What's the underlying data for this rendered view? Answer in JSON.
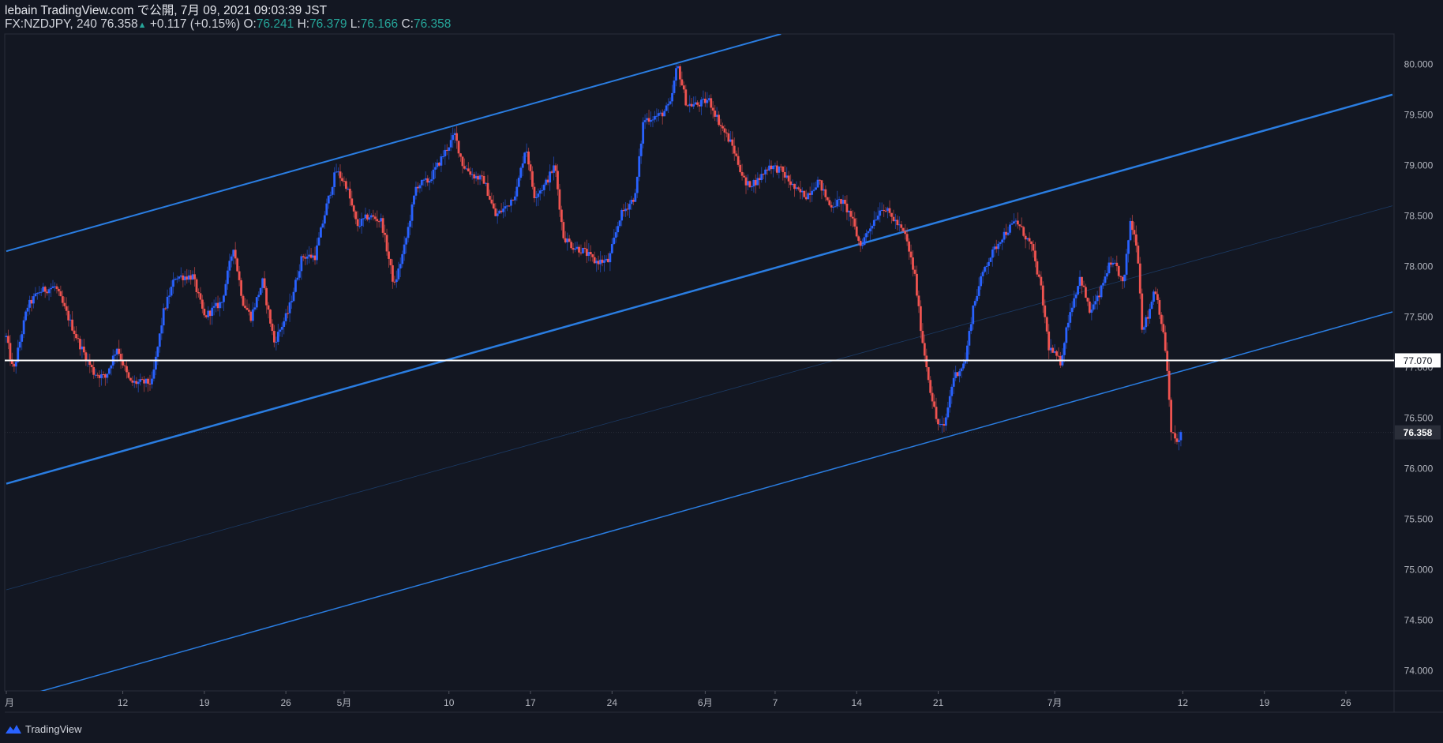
{
  "header": {
    "line1": "lebain TradingView.com で公開, 7月 09, 2021 09:03:39 JST",
    "symbol": "FX:NZDJPY, 240",
    "last": "76.358",
    "up_arrow": "▲",
    "change": "+0.117 (+0.15%)",
    "o_label": "O:",
    "o_value": "76.241",
    "h_label": "H:",
    "h_value": "76.379",
    "l_label": "L:",
    "l_value": "76.166",
    "c_label": "C:",
    "c_value": "76.358"
  },
  "footer": {
    "brand": "TradingView",
    "logo_icon": "tradingview-logo-icon"
  },
  "colors": {
    "background": "#131722",
    "up": "#2962ff",
    "down": "#ef5350",
    "channel": "#2a7de1",
    "level_line": "#ffffff",
    "axis_text": "#b2b5be"
  },
  "chart_data": {
    "type": "candlestick",
    "instrument": "FX:NZDJPY",
    "interval": "240",
    "y_ticks": [
      "80.000",
      "79.500",
      "79.000",
      "78.500",
      "78.000",
      "77.500",
      "77.000",
      "76.500",
      "76.000",
      "75.500",
      "75.000",
      "74.500",
      "74.000"
    ],
    "ylim": [
      73.8,
      80.3
    ],
    "x_ticks": [
      {
        "label": "月",
        "day": 0
      },
      {
        "label": "12",
        "day": 10
      },
      {
        "label": "19",
        "day": 17
      },
      {
        "label": "26",
        "day": 24
      },
      {
        "label": "5月",
        "day": 29
      },
      {
        "label": "10",
        "day": 38
      },
      {
        "label": "17",
        "day": 45
      },
      {
        "label": "24",
        "day": 52
      },
      {
        "label": "6月",
        "day": 60
      },
      {
        "label": "7",
        "day": 66
      },
      {
        "label": "14",
        "day": 73
      },
      {
        "label": "21",
        "day": 80
      },
      {
        "label": "7月",
        "day": 90
      },
      {
        "label": "12",
        "day": 101
      },
      {
        "label": "19",
        "day": 108
      },
      {
        "label": "26",
        "day": 115
      }
    ],
    "xlim": [
      0,
      119
    ],
    "horizontal_line": {
      "value": 77.07,
      "label": "77.070"
    },
    "last_price": {
      "value": 76.358,
      "label": "76.358"
    },
    "channel_lines": [
      {
        "name": "",
        "from": [
          0,
          78.15
        ],
        "to": [
          66.5,
          80.3
        ],
        "width": 2
      },
      {
        "name": "",
        "from": [
          0,
          75.85
        ],
        "to": [
          119,
          79.7
        ],
        "width": 2.5
      },
      {
        "name": "",
        "from": [
          0,
          73.7
        ],
        "to": [
          119,
          77.55
        ],
        "width": 1.5
      },
      {
        "name": "",
        "from": [
          0,
          74.8
        ],
        "to": [
          119,
          78.6
        ],
        "width": 0.8
      }
    ],
    "path": [
      [
        0,
        77.3
      ],
      [
        0.6,
        76.95
      ],
      [
        1.8,
        77.6
      ],
      [
        2.8,
        77.75
      ],
      [
        4.2,
        77.8
      ],
      [
        5.3,
        77.5
      ],
      [
        6.2,
        77.25
      ],
      [
        7.5,
        76.95
      ],
      [
        8.5,
        76.9
      ],
      [
        9.5,
        77.2
      ],
      [
        10.6,
        76.85
      ],
      [
        12.5,
        76.85
      ],
      [
        13.5,
        77.55
      ],
      [
        14.5,
        77.9
      ],
      [
        16,
        77.9
      ],
      [
        17,
        77.5
      ],
      [
        18.5,
        77.65
      ],
      [
        19.5,
        78.2
      ],
      [
        20.3,
        77.65
      ],
      [
        21,
        77.5
      ],
      [
        22,
        77.85
      ],
      [
        23,
        77.25
      ],
      [
        24.2,
        77.55
      ],
      [
        25.4,
        78.1
      ],
      [
        26.5,
        78.1
      ],
      [
        27.5,
        78.6
      ],
      [
        28.3,
        78.95
      ],
      [
        29.2,
        78.8
      ],
      [
        30.1,
        78.4
      ],
      [
        31.1,
        78.5
      ],
      [
        32.2,
        78.45
      ],
      [
        33.3,
        77.8
      ],
      [
        34.2,
        78.2
      ],
      [
        35.2,
        78.8
      ],
      [
        36.3,
        78.85
      ],
      [
        37.5,
        79.1
      ],
      [
        38.5,
        79.3
      ],
      [
        39.2,
        79.0
      ],
      [
        40.1,
        78.9
      ],
      [
        41,
        78.85
      ],
      [
        42,
        78.5
      ],
      [
        43,
        78.6
      ],
      [
        43.8,
        78.75
      ],
      [
        44.6,
        79.2
      ],
      [
        45.3,
        78.7
      ],
      [
        46.2,
        78.8
      ],
      [
        47.1,
        79.0
      ],
      [
        47.8,
        78.3
      ],
      [
        48.6,
        78.2
      ],
      [
        49.6,
        78.15
      ],
      [
        50.5,
        78.05
      ],
      [
        51.7,
        78.05
      ],
      [
        52.7,
        78.5
      ],
      [
        54,
        78.7
      ],
      [
        54.7,
        79.45
      ],
      [
        56.2,
        79.5
      ],
      [
        57,
        79.6
      ],
      [
        57.6,
        80.0
      ],
      [
        58.4,
        79.6
      ],
      [
        59.4,
        79.6
      ],
      [
        60.3,
        79.65
      ],
      [
        61.3,
        79.4
      ],
      [
        62.3,
        79.2
      ],
      [
        63.5,
        78.8
      ],
      [
        64.5,
        78.85
      ],
      [
        65.5,
        79.0
      ],
      [
        66.5,
        78.95
      ],
      [
        67.8,
        78.75
      ],
      [
        68.7,
        78.7
      ],
      [
        69.7,
        78.85
      ],
      [
        70.7,
        78.6
      ],
      [
        71.7,
        78.65
      ],
      [
        72.5,
        78.5
      ],
      [
        73.3,
        78.2
      ],
      [
        74.2,
        78.4
      ],
      [
        75.2,
        78.6
      ],
      [
        76.3,
        78.45
      ],
      [
        77.2,
        78.3
      ],
      [
        78.0,
        77.9
      ],
      [
        78.6,
        77.3
      ],
      [
        79.3,
        76.8
      ],
      [
        79.9,
        76.45
      ],
      [
        80.5,
        76.4
      ],
      [
        81.3,
        76.9
      ],
      [
        82.3,
        77.05
      ],
      [
        83,
        77.6
      ],
      [
        84,
        78.0
      ],
      [
        85.5,
        78.3
      ],
      [
        86.7,
        78.45
      ],
      [
        88.0,
        78.2
      ],
      [
        88.8,
        77.8
      ],
      [
        89.5,
        77.2
      ],
      [
        90.5,
        77.05
      ],
      [
        91.2,
        77.5
      ],
      [
        92.2,
        77.9
      ],
      [
        93,
        77.55
      ],
      [
        93.8,
        77.7
      ],
      [
        94.6,
        78.0
      ],
      [
        95.3,
        78.0
      ],
      [
        95.9,
        77.8
      ],
      [
        96.5,
        78.45
      ],
      [
        97.1,
        78.2
      ],
      [
        97.5,
        77.4
      ],
      [
        98,
        77.5
      ],
      [
        98.6,
        77.8
      ],
      [
        99.1,
        77.5
      ],
      [
        99.6,
        77.1
      ],
      [
        100.0,
        76.35
      ],
      [
        100.6,
        76.25
      ],
      [
        100.9,
        76.36
      ]
    ]
  }
}
